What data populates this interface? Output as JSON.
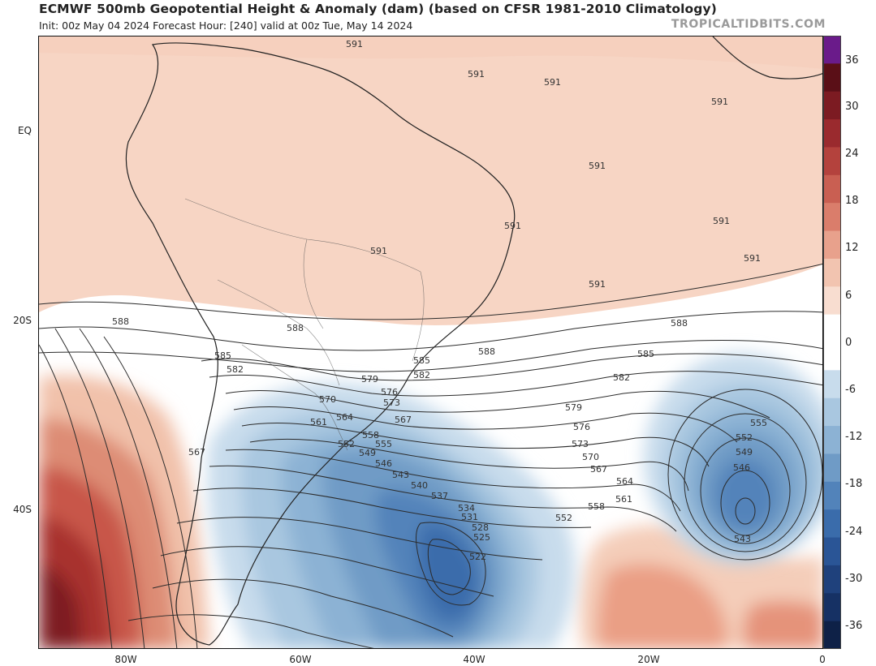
{
  "header": {
    "title": "ECMWF 500mb Geopotential Height & Anomaly (dam) (based on CFSR 1981-2010 Climatology)",
    "subtitle": "Init: 00z May 04 2024   Forecast Hour: [240]   valid at 00z Tue, May 14 2024",
    "brand": "TROPICALTIDBITS.COM"
  },
  "axes": {
    "lat_labels": [
      "EQ",
      "20S",
      "40S"
    ],
    "lon_labels": [
      "80W",
      "60W",
      "40W",
      "20W",
      "0"
    ]
  },
  "colorbar": {
    "ticks": [
      "36",
      "30",
      "24",
      "18",
      "12",
      "6",
      "0",
      "-6",
      "-12",
      "-18",
      "-24",
      "-30",
      "-36"
    ],
    "colors": [
      "#6a1b8a",
      "#5a0f17",
      "#7c1b22",
      "#9a2a2e",
      "#b4423d",
      "#c95f52",
      "#da7d6b",
      "#e8a18c",
      "#f2c4b0",
      "#f8ddd0",
      "#ffffff",
      "#ffffff",
      "#c8dcec",
      "#a9c7e0",
      "#8cb2d4",
      "#6f9bc6",
      "#5283ba",
      "#3a6cab",
      "#2a5596",
      "#1f417c",
      "#163164",
      "#0e2147"
    ]
  },
  "contour_labels": [
    "591",
    "591",
    "591",
    "591",
    "591",
    "591",
    "591",
    "591",
    "591",
    "591",
    "588",
    "588",
    "588",
    "588",
    "585",
    "585",
    "585",
    "582",
    "582",
    "582",
    "579",
    "579",
    "576",
    "576",
    "573",
    "573",
    "570",
    "570",
    "567",
    "567",
    "567",
    "564",
    "564",
    "561",
    "561",
    "558",
    "558",
    "555",
    "555",
    "552",
    "552",
    "552",
    "549",
    "549",
    "546",
    "546",
    "543",
    "543",
    "540",
    "537",
    "534",
    "531",
    "528",
    "525",
    "522"
  ]
}
